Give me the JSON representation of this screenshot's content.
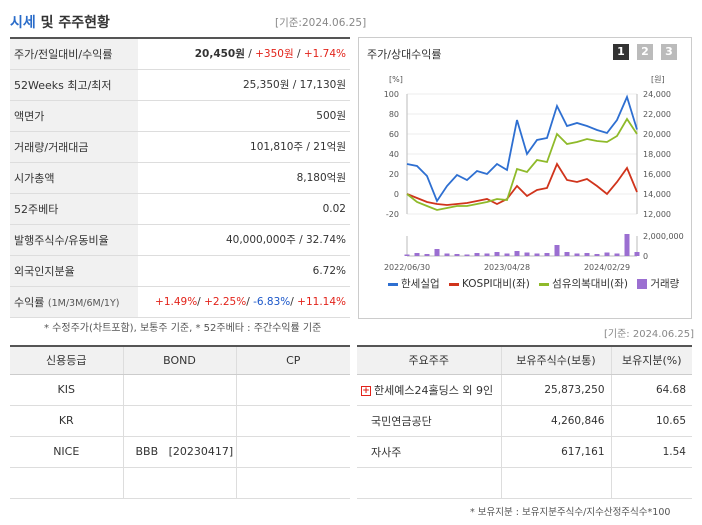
{
  "header": {
    "title_main": "시세",
    "title_rest": " 및 주주현황",
    "date": "[기준:2024.06.25]"
  },
  "snapshot": {
    "rows": [
      {
        "label": "주가/전일대비/수익률",
        "price": "20,450원",
        "change": "+350원",
        "rate": "+1.74%"
      },
      {
        "label": "52Weeks 최고/최저",
        "value": "25,350원 / 17,130원"
      },
      {
        "label": "액면가",
        "value": "500원"
      },
      {
        "label": "거래량/거래대금",
        "value": "101,810주 / 21억원"
      },
      {
        "label": "시가총액",
        "value": "8,180억원"
      },
      {
        "label": "52주베타",
        "value": "0.02"
      },
      {
        "label": "발행주식수/유동비율",
        "value": "40,000,000주 / 32.74%"
      },
      {
        "label": "외국인지분율",
        "value": "6.72%"
      }
    ],
    "returns": {
      "label": "수익률",
      "periods": "(1M/3M/6M/1Y)",
      "m1": "+1.49%",
      "m3": "+2.25%",
      "m6": "-6.83%",
      "y1": "+11.14%"
    },
    "note": "* 수정주가(차트포함), 보통주 기준, * 52주베타 : 주간수익률 기준"
  },
  "chart": {
    "title": "주가/상대수익률",
    "pages": [
      "1",
      "2",
      "3"
    ],
    "left_unit": "[%]",
    "right_unit": "[원]",
    "vol_tick_label": "2,000,000"
  },
  "chart_data": {
    "type": "line",
    "x": [
      "2022/06/30",
      "2022/08",
      "2022/09",
      "2022/10",
      "2022/11",
      "2022/12",
      "2023/01",
      "2023/02",
      "2023/03",
      "2023/04",
      "2023/05",
      "2023/06",
      "2023/07",
      "2023/08",
      "2023/09",
      "2023/10",
      "2023/11",
      "2023/12",
      "2024/01",
      "2024/02",
      "2024/03",
      "2024/04",
      "2024/05",
      "2024/06"
    ],
    "x_tick_labels": [
      "2022/06/30",
      "2023/04/28",
      "2024/02/29"
    ],
    "left_axis": {
      "label": "[%]",
      "ylim": [
        -20,
        100
      ],
      "ticks": [
        -20,
        0,
        20,
        40,
        60,
        80,
        100
      ]
    },
    "right_axis": {
      "label": "[원]",
      "ylim": [
        12000,
        24000
      ],
      "ticks": [
        12000,
        14000,
        16000,
        18000,
        20000,
        22000,
        24000
      ]
    },
    "volume_axis": {
      "ticks": [
        0,
        2000000
      ]
    },
    "series": [
      {
        "name": "한세실업",
        "axis": "right",
        "color": "#2e6fd1",
        "values": [
          17000,
          16800,
          15800,
          13300,
          14800,
          15900,
          15400,
          16300,
          16000,
          17000,
          16400,
          21400,
          18000,
          19400,
          19600,
          22800,
          20800,
          21100,
          20800,
          20400,
          20100,
          21400,
          23700,
          20450
        ]
      },
      {
        "name": "KOSPI대비(좌)",
        "axis": "left",
        "color": "#d0341c",
        "values": [
          0,
          -4,
          -8,
          -10,
          -11,
          -10,
          -9,
          -7,
          -5,
          -10,
          -5,
          8,
          -2,
          4,
          6,
          30,
          14,
          12,
          15,
          8,
          0,
          12,
          26,
          2
        ]
      },
      {
        "name": "섬유의복대비(좌)",
        "axis": "left",
        "color": "#8fba2a",
        "values": [
          0,
          -8,
          -12,
          -16,
          -14,
          -12,
          -12,
          -10,
          -8,
          -5,
          -6,
          25,
          22,
          34,
          32,
          60,
          50,
          52,
          55,
          53,
          52,
          58,
          75,
          60
        ]
      },
      {
        "name": "거래량",
        "axis": "volume",
        "color": "#9b6fd1",
        "type": "bar",
        "values": [
          150000,
          300000,
          200000,
          700000,
          250000,
          200000,
          150000,
          300000,
          250000,
          400000,
          250000,
          500000,
          350000,
          250000,
          300000,
          1100000,
          400000,
          250000,
          300000,
          200000,
          350000,
          250000,
          2200000,
          400000
        ]
      }
    ]
  },
  "legend": [
    {
      "label": "한세실업",
      "color": "#2e6fd1",
      "kind": "line"
    },
    {
      "label": "KOSPI대비(좌)",
      "color": "#d0341c",
      "kind": "line"
    },
    {
      "label": "섬유의복대비(좌)",
      "color": "#8fba2a",
      "kind": "line"
    },
    {
      "label": "거래량",
      "color": "#9b6fd1",
      "kind": "square"
    }
  ],
  "date2": "[기준: 2024.06.25]",
  "credit": {
    "headers": [
      "신용등급",
      "BOND",
      "CP"
    ],
    "rows": [
      {
        "agency": "KIS",
        "bond": "",
        "cp": ""
      },
      {
        "agency": "KR",
        "bond": "",
        "cp": ""
      },
      {
        "agency": "NICE",
        "bond": "BBB   [20230417]",
        "cp": ""
      },
      {
        "agency": "",
        "bond": "",
        "cp": ""
      }
    ]
  },
  "holders": {
    "headers": [
      "주요주주",
      "보유주식수(보통)",
      "보유지분(%)"
    ],
    "rows": [
      {
        "name": "한세예스24홀딩스 외 9인",
        "shares": "25,873,250",
        "pct": "64.68",
        "expandable": true
      },
      {
        "name": "국민연금공단",
        "shares": "4,260,846",
        "pct": "10.65",
        "expandable": false
      },
      {
        "name": "자사주",
        "shares": "617,161",
        "pct": "1.54",
        "expandable": false
      },
      {
        "name": "",
        "shares": "",
        "pct": "",
        "expandable": false
      }
    ],
    "note": "* 보유지분 : 보유지분주식수/지수산정주식수*100"
  }
}
